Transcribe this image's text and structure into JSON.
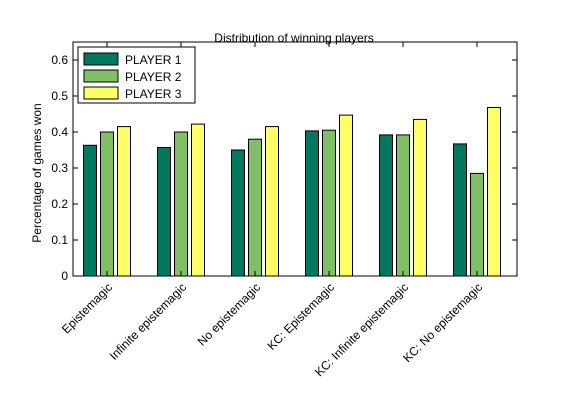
{
  "chart_data": {
    "type": "bar",
    "title": "Distribution of winning players",
    "xlabel": "",
    "ylabel": "Percentage of games won",
    "ylim": [
      0,
      0.65
    ],
    "yticks": [
      "0",
      "0.1",
      "0.2",
      "0.3",
      "0.4",
      "0.5",
      "0.6"
    ],
    "grid": false,
    "legend_position": "top-left",
    "categories": [
      "Epistemagic",
      "Infinite epistemagic",
      "No epistemagic",
      "KC: Epistemagic",
      "KC: Infinite epistemagic",
      "KC: No epistemagic"
    ],
    "series": [
      {
        "name": "PLAYER 1",
        "color": "#00785f",
        "values": [
          0.363,
          0.357,
          0.35,
          0.403,
          0.392,
          0.367
        ]
      },
      {
        "name": "PLAYER 2",
        "color": "#80bf65",
        "values": [
          0.4,
          0.4,
          0.38,
          0.405,
          0.392,
          0.285
        ]
      },
      {
        "name": "PLAYER 3",
        "color": "#ffff66",
        "values": [
          0.415,
          0.422,
          0.415,
          0.447,
          0.435,
          0.468
        ]
      }
    ]
  }
}
